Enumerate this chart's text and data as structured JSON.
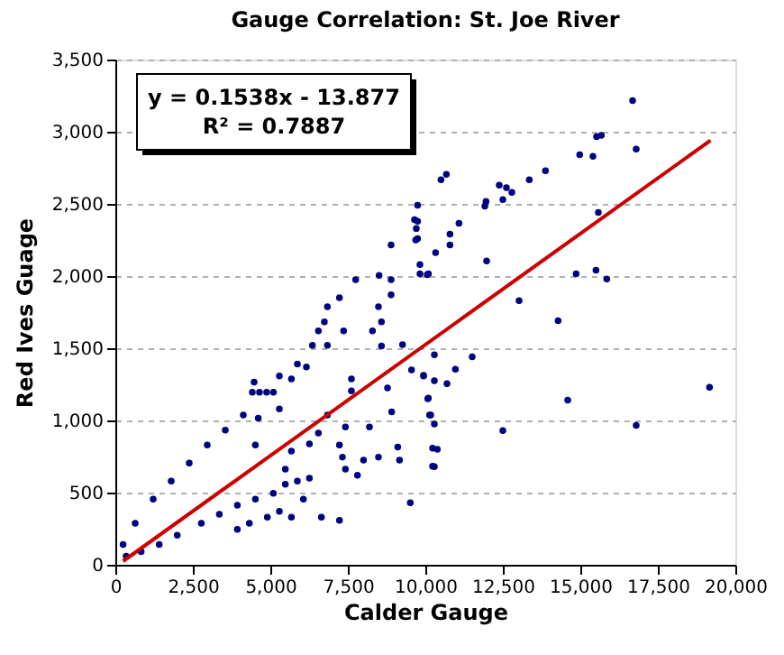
{
  "chart_data": {
    "type": "scatter",
    "title": "Gauge Correlation: St. Joe River",
    "xlabel": "Calder Gauge",
    "ylabel": "Red Ives Guage",
    "annotations": [
      "y = 0.1538x - 13.877",
      "R² = 0.7887"
    ],
    "xlim": [
      0,
      20000
    ],
    "xticks": [
      0,
      {
        "value": 2500,
        "label": "2,500"
      },
      {
        "value": 5000,
        "label": "5,000"
      },
      {
        "value": 7500,
        "label": "7,500"
      },
      {
        "value": 10000,
        "label": "10,000"
      },
      {
        "value": 12500,
        "label": "12,500"
      },
      {
        "value": 15000,
        "label": "15,000"
      },
      {
        "value": 17500,
        "label": "17,500"
      },
      {
        "value": 20000,
        "label": "20,000"
      }
    ],
    "ylim": [
      0,
      3500
    ],
    "yticks": [
      0,
      500,
      {
        "value": 1000,
        "label": "1,000"
      },
      {
        "value": 1500,
        "label": "1,500"
      },
      {
        "value": 2000,
        "label": "2,000"
      },
      {
        "value": 2500,
        "label": "2,500"
      },
      {
        "value": 3000,
        "label": "3,000"
      },
      {
        "value": 3500,
        "label": "3,500"
      }
    ],
    "grid": "y",
    "series": [
      {
        "marker": "circle",
        "color": "#000080",
        "x": [
          16686,
          16802,
          15523,
          15678,
          15407,
          14980,
          15581,
          13876,
          13353,
          12791,
          12616,
          12384,
          12500,
          11957,
          11919,
          10678,
          10504,
          11085,
          10794,
          10794,
          11977,
          14864,
          15504,
          15853,
          13023,
          14283,
          9826,
          9826,
          10099,
          9750,
          9750,
          9750,
          11512,
          10291,
          10970,
          9942,
          10291,
          10698,
          10078,
          10174,
          10291,
          10388,
          10291,
          12500,
          14593,
          16802,
          19168,
          9651,
          9709,
          9690,
          8895,
          8508,
          10058,
          8895,
          8895,
          7752,
          7229,
          6841,
          6744,
          6550,
          7364,
          6357,
          6841,
          5872,
          6163,
          5291,
          5680,
          4477,
          4419,
          4650,
          4880,
          5099,
          4128,
          4610,
          3547,
          2965,
          2384,
          1802,
          1221,
          640,
          250,
          8488,
          8585,
          8585,
          8295,
          7616,
          7616,
          8779,
          8915,
          8198,
          7422,
          6841,
          6550,
          6260,
          5680,
          5484,
          7229,
          7326,
          7422,
          8006,
          8488,
          7810,
          9110,
          9167,
          10233,
          10233,
          9515,
          9554,
          9942,
          10097,
          10136,
          9264,
          10330,
          6260,
          5872,
          5484,
          5097,
          4517,
          3936,
          3355,
          2773,
          1996,
          1415,
          833,
          349,
          6647,
          7229,
          6066,
          5291,
          4903,
          5680,
          4322,
          3936,
          4517,
          5291
        ],
        "values": [
          3216,
          2879,
          2966,
          2975,
          2829,
          2841,
          2441,
          2729,
          2667,
          2579,
          2612,
          2629,
          2529,
          2517,
          2484,
          2704,
          2667,
          2366,
          2291,
          2216,
          2104,
          2016,
          2041,
          1979,
          1829,
          1691,
          2079,
          2016,
          2016,
          2490,
          2380,
          2260,
          1441,
          1454,
          1354,
          1313,
          1275,
          1254,
          1150,
          1037,
          975,
          800,
          679,
          929,
          1141,
          966,
          1229,
          2391,
          2329,
          2250,
          2216,
          2004,
          2009,
          1975,
          1871,
          1975,
          1850,
          1788,
          1683,
          1621,
          1621,
          1520,
          1520,
          1391,
          1371,
          1308,
          1288,
          1266,
          1196,
          1196,
          1196,
          1196,
          1037,
          1016,
          933,
          829,
          704,
          579,
          454,
          288,
          141,
          1788,
          1683,
          1516,
          1621,
          1288,
          1204,
          1225,
          1059,
          954,
          954,
          1037,
          913,
          838,
          788,
          663,
          829,
          746,
          663,
          725,
          746,
          621,
          816,
          725,
          808,
          683,
          429,
          1350,
          1308,
          1154,
          1037,
          1525,
          2163,
          600,
          579,
          558,
          496,
          454,
          413,
          350,
          288,
          204,
          141,
          91,
          59,
          329,
          308,
          454,
          371,
          329,
          329,
          288,
          246,
          829,
          1079
        ]
      },
      {
        "type": "line",
        "color": "#cc0000",
        "x": [
          250,
          19200
        ],
        "values": [
          25,
          2940
        ]
      }
    ]
  }
}
